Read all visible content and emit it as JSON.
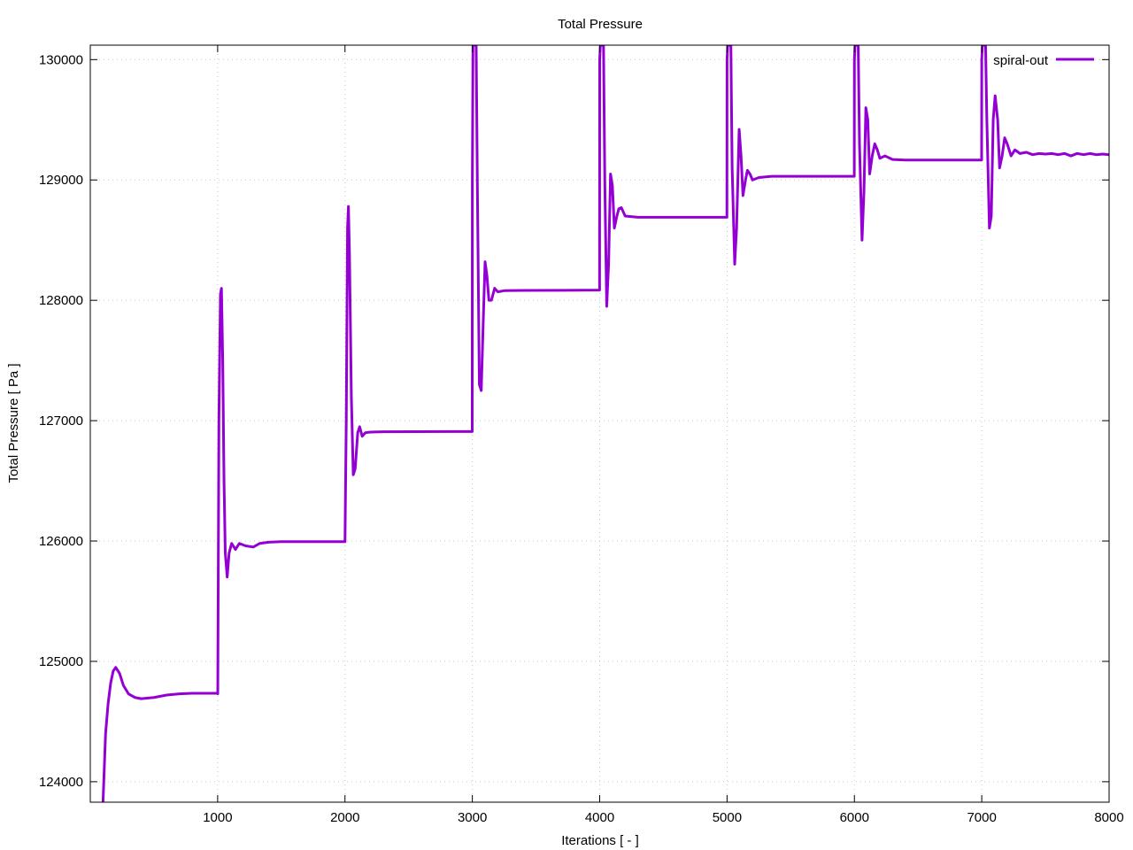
{
  "chart_data": {
    "type": "line",
    "title": "Total Pressure",
    "xlabel": "Iterations [ - ]",
    "ylabel": "Total Pressure [ Pa ]",
    "xlim": [
      0,
      8000
    ],
    "ylim": [
      123830,
      130120
    ],
    "xticks": [
      1000,
      2000,
      3000,
      4000,
      5000,
      6000,
      7000,
      8000
    ],
    "yticks": [
      124000,
      125000,
      126000,
      127000,
      128000,
      129000,
      130000
    ],
    "grid": true,
    "legend_position": "top-right",
    "series": [
      {
        "name": "spiral-out",
        "color": "#9400d3",
        "points": [
          [
            100,
            123830
          ],
          [
            120,
            124400
          ],
          [
            140,
            124650
          ],
          [
            160,
            124820
          ],
          [
            180,
            124920
          ],
          [
            200,
            124950
          ],
          [
            230,
            124900
          ],
          [
            260,
            124800
          ],
          [
            300,
            124730
          ],
          [
            350,
            124700
          ],
          [
            400,
            124690
          ],
          [
            500,
            124700
          ],
          [
            600,
            124720
          ],
          [
            700,
            124730
          ],
          [
            800,
            124735
          ],
          [
            1000,
            124735
          ],
          [
            1001,
            124730
          ],
          [
            1010,
            127000
          ],
          [
            1022,
            128050
          ],
          [
            1030,
            128100
          ],
          [
            1040,
            127500
          ],
          [
            1050,
            126500
          ],
          [
            1060,
            125900
          ],
          [
            1075,
            125700
          ],
          [
            1090,
            125900
          ],
          [
            1110,
            125980
          ],
          [
            1140,
            125930
          ],
          [
            1170,
            125980
          ],
          [
            1220,
            125960
          ],
          [
            1280,
            125950
          ],
          [
            1330,
            125980
          ],
          [
            1400,
            125990
          ],
          [
            1500,
            125995
          ],
          [
            2000,
            125995
          ],
          [
            2010,
            127000
          ],
          [
            2020,
            128600
          ],
          [
            2027,
            128780
          ],
          [
            2035,
            128400
          ],
          [
            2050,
            127200
          ],
          [
            2065,
            126550
          ],
          [
            2080,
            126600
          ],
          [
            2100,
            126900
          ],
          [
            2115,
            126950
          ],
          [
            2135,
            126870
          ],
          [
            2160,
            126900
          ],
          [
            2200,
            126905
          ],
          [
            2300,
            126908
          ],
          [
            2999,
            126910
          ],
          [
            3000,
            129000
          ],
          [
            3005,
            130120
          ],
          [
            3030,
            130120
          ],
          [
            3040,
            128900
          ],
          [
            3055,
            127300
          ],
          [
            3070,
            127250
          ],
          [
            3085,
            127800
          ],
          [
            3100,
            128320
          ],
          [
            3115,
            128200
          ],
          [
            3130,
            128000
          ],
          [
            3150,
            128000
          ],
          [
            3175,
            128100
          ],
          [
            3200,
            128070
          ],
          [
            3250,
            128080
          ],
          [
            3400,
            128082
          ],
          [
            3999,
            128085
          ],
          [
            4000,
            130000
          ],
          [
            4005,
            130120
          ],
          [
            4030,
            130120
          ],
          [
            4040,
            129000
          ],
          [
            4055,
            127950
          ],
          [
            4070,
            128300
          ],
          [
            4085,
            129050
          ],
          [
            4100,
            128950
          ],
          [
            4115,
            128600
          ],
          [
            4135,
            128700
          ],
          [
            4150,
            128760
          ],
          [
            4170,
            128770
          ],
          [
            4200,
            128700
          ],
          [
            4300,
            128690
          ],
          [
            4999,
            128690
          ],
          [
            5000,
            130000
          ],
          [
            5005,
            130120
          ],
          [
            5030,
            130120
          ],
          [
            5040,
            129100
          ],
          [
            5060,
            128300
          ],
          [
            5075,
            128600
          ],
          [
            5095,
            129420
          ],
          [
            5110,
            129200
          ],
          [
            5125,
            128870
          ],
          [
            5145,
            129000
          ],
          [
            5160,
            129080
          ],
          [
            5180,
            129050
          ],
          [
            5200,
            129000
          ],
          [
            5250,
            129020
          ],
          [
            5350,
            129030
          ],
          [
            5999,
            129030
          ],
          [
            6000,
            130000
          ],
          [
            6005,
            130120
          ],
          [
            6030,
            130120
          ],
          [
            6040,
            129300
          ],
          [
            6060,
            128500
          ],
          [
            6075,
            128900
          ],
          [
            6090,
            129600
          ],
          [
            6105,
            129500
          ],
          [
            6120,
            129050
          ],
          [
            6140,
            129200
          ],
          [
            6160,
            129300
          ],
          [
            6180,
            129250
          ],
          [
            6200,
            129180
          ],
          [
            6240,
            129200
          ],
          [
            6300,
            129170
          ],
          [
            6400,
            129165
          ],
          [
            6999,
            129165
          ],
          [
            7000,
            130000
          ],
          [
            7005,
            130120
          ],
          [
            7030,
            130120
          ],
          [
            7040,
            129500
          ],
          [
            7060,
            128600
          ],
          [
            7075,
            128700
          ],
          [
            7090,
            129500
          ],
          [
            7105,
            129700
          ],
          [
            7125,
            129500
          ],
          [
            7140,
            129100
          ],
          [
            7160,
            129200
          ],
          [
            7180,
            129350
          ],
          [
            7200,
            129300
          ],
          [
            7230,
            129200
          ],
          [
            7260,
            129250
          ],
          [
            7300,
            129220
          ],
          [
            7350,
            129230
          ],
          [
            7400,
            129210
          ],
          [
            7450,
            129220
          ],
          [
            7500,
            129215
          ],
          [
            7550,
            129220
          ],
          [
            7600,
            129210
          ],
          [
            7650,
            129220
          ],
          [
            7700,
            129200
          ],
          [
            7750,
            129220
          ],
          [
            7800,
            129210
          ],
          [
            7850,
            129220
          ],
          [
            7900,
            129210
          ],
          [
            7950,
            129215
          ],
          [
            8000,
            129210
          ]
        ]
      }
    ]
  }
}
